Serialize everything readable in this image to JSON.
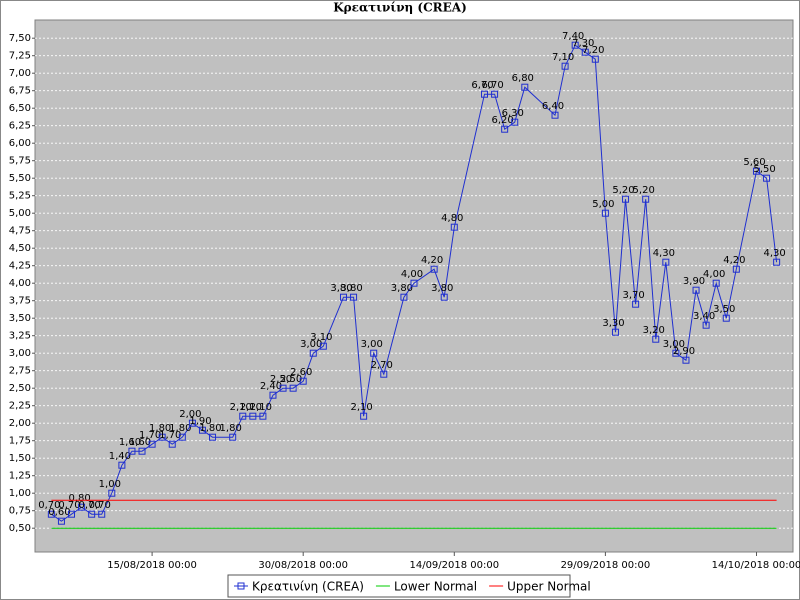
{
  "chart_data": {
    "type": "line",
    "title": "Κρεατινίνη  (CREA)",
    "xlim": [
      "2018-08-03 09:00",
      "2018-10-17 15:00"
    ],
    "xticks": [
      {
        "value": "2018-08-15",
        "label": "15/08/2018 00:00"
      },
      {
        "value": "2018-08-30",
        "label": "30/08/2018 00:00"
      },
      {
        "value": "2018-09-14",
        "label": "14/09/2018 00:00"
      },
      {
        "value": "2018-09-29",
        "label": "29/09/2018 00:00"
      },
      {
        "value": "2018-10-14",
        "label": "14/10/2018 00:00"
      }
    ],
    "ylim": [
      0.16,
      7.76
    ],
    "yticks": [
      {
        "value": 0.5,
        "label": "0,50"
      },
      {
        "value": 0.75,
        "label": "0,75"
      },
      {
        "value": 1,
        "label": "1,00"
      },
      {
        "value": 1.25,
        "label": "1,25"
      },
      {
        "value": 1.5,
        "label": "1,50"
      },
      {
        "value": 1.75,
        "label": "1,75"
      },
      {
        "value": 2,
        "label": "2,00"
      },
      {
        "value": 2.25,
        "label": "2,25"
      },
      {
        "value": 2.5,
        "label": "2,50"
      },
      {
        "value": 2.75,
        "label": "2,75"
      },
      {
        "value": 3,
        "label": "3,00"
      },
      {
        "value": 3.25,
        "label": "3,25"
      },
      {
        "value": 3.5,
        "label": "3,50"
      },
      {
        "value": 3.75,
        "label": "3,75"
      },
      {
        "value": 4,
        "label": "4,00"
      },
      {
        "value": 4.25,
        "label": "4,25"
      },
      {
        "value": 4.5,
        "label": "4,50"
      },
      {
        "value": 4.75,
        "label": "4,75"
      },
      {
        "value": 5,
        "label": "5,00"
      },
      {
        "value": 5.25,
        "label": "5,25"
      },
      {
        "value": 5.5,
        "label": "5,50"
      },
      {
        "value": 5.75,
        "label": "5,75"
      },
      {
        "value": 6,
        "label": "6,00"
      },
      {
        "value": 6.25,
        "label": "6,25"
      },
      {
        "value": 6.5,
        "label": "6,50"
      },
      {
        "value": 6.75,
        "label": "6,75"
      },
      {
        "value": 7,
        "label": "7,00"
      },
      {
        "value": 7.25,
        "label": "7,25"
      },
      {
        "value": 7.5,
        "label": "7,50"
      }
    ],
    "grid": true,
    "series": [
      {
        "name": "Κρεατινίνη  (CREA)",
        "color": "#1f2fd0",
        "markers": true,
        "x": [
          "2018-08-05",
          "2018-08-06",
          "2018-08-07",
          "2018-08-08",
          "2018-08-09",
          "2018-08-10",
          "2018-08-11",
          "2018-08-12",
          "2018-08-13",
          "2018-08-14",
          "2018-08-15",
          "2018-08-16",
          "2018-08-17",
          "2018-08-18",
          "2018-08-19",
          "2018-08-20",
          "2018-08-21",
          "2018-08-23",
          "2018-08-24",
          "2018-08-25",
          "2018-08-26",
          "2018-08-27",
          "2018-08-28",
          "2018-08-29",
          "2018-08-30",
          "2018-08-31",
          "2018-09-01",
          "2018-09-03",
          "2018-09-04",
          "2018-09-05",
          "2018-09-06",
          "2018-09-07",
          "2018-09-09",
          "2018-09-10",
          "2018-09-12",
          "2018-09-13",
          "2018-09-14",
          "2018-09-17",
          "2018-09-18",
          "2018-09-19",
          "2018-09-20",
          "2018-09-21",
          "2018-09-24",
          "2018-09-25",
          "2018-09-26",
          "2018-09-27",
          "2018-09-28",
          "2018-09-29",
          "2018-09-30",
          "2018-10-01",
          "2018-10-02",
          "2018-10-03",
          "2018-10-04",
          "2018-10-05",
          "2018-10-06",
          "2018-10-07",
          "2018-10-08",
          "2018-10-09",
          "2018-10-10",
          "2018-10-11",
          "2018-10-12",
          "2018-10-14",
          "2018-10-15",
          "2018-10-16"
        ],
        "values": [
          0.7,
          0.6,
          0.7,
          0.8,
          0.7,
          0.7,
          1.0,
          1.4,
          1.6,
          1.6,
          1.7,
          1.8,
          1.7,
          1.8,
          2.0,
          1.9,
          1.8,
          1.8,
          2.1,
          2.1,
          2.1,
          2.4,
          2.5,
          2.5,
          2.6,
          3.0,
          3.1,
          3.8,
          3.8,
          2.1,
          3.0,
          2.7,
          3.8,
          4.0,
          4.2,
          3.8,
          4.8,
          6.7,
          6.7,
          6.2,
          6.3,
          6.8,
          6.4,
          7.1,
          7.4,
          7.3,
          7.2,
          5.0,
          3.3,
          5.2,
          3.7,
          5.2,
          3.2,
          4.3,
          3.0,
          2.9,
          3.9,
          3.4,
          4.0,
          3.5,
          4.2,
          5.6,
          5.5,
          4.3
        ],
        "value_labels": [
          "0,70",
          "0,60",
          "0,70",
          "0,80",
          "0,70",
          "0,70",
          "1,00",
          "1,40",
          "1,60",
          "1,60",
          "1,70",
          "1,80",
          "1,70",
          "1,80",
          "2,00",
          "1,90",
          "1,80",
          "1,80",
          "2,10",
          "2,10",
          "2,10",
          "2,40",
          "2,50",
          "2,50",
          "2,60",
          "3,00",
          "3,10",
          "3,80",
          "3,80",
          "2,10",
          "3,00",
          "2,70",
          "3,80",
          "4,00",
          "4,20",
          "3,80",
          "4,80",
          "6,70",
          "6,70",
          "6,20",
          "6,30",
          "6,80",
          "6,40",
          "7,10",
          "7,40",
          "7,30",
          "7,20",
          "5,00",
          "3,30",
          "5,20",
          "3,70",
          "5,20",
          "3,20",
          "4,30",
          "3,00",
          "2,90",
          "3,90",
          "3,40",
          "4,00",
          "3,50",
          "4,20",
          "5,60",
          "5,50",
          "4,30"
        ]
      },
      {
        "name": "Lower Normal",
        "color": "#00cc00",
        "markers": false,
        "x": [
          "2018-08-05",
          "2018-10-16"
        ],
        "values": [
          0.5,
          0.5
        ]
      },
      {
        "name": "Upper Normal",
        "color": "#ff0000",
        "markers": false,
        "x": [
          "2018-08-05",
          "2018-10-16"
        ],
        "values": [
          0.9,
          0.9
        ]
      }
    ]
  }
}
